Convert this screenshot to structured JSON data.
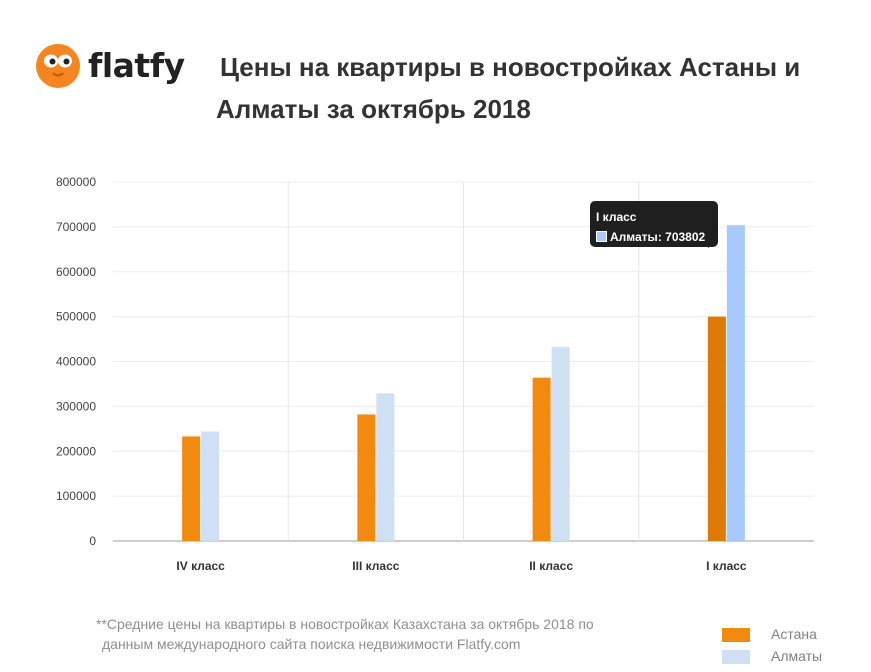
{
  "brand": {
    "name": "flatfy"
  },
  "title": {
    "line1": "Цены на квартиры в новостройках Астаны и",
    "line2": "Алматы за октябрь 2018"
  },
  "footnote": {
    "line1": "**Средние цены на квартиры в новостройках Казахстана за октябрь 2018 по",
    "line2": "данным международного сайта поиска недвижимости Flatfy.com"
  },
  "tooltip": {
    "category": "I класс",
    "series": "Алматы",
    "value": "703802"
  },
  "colors": {
    "astana": "#f28a0f",
    "almaty": "#cfdff4",
    "almaty_active": "#a8c9fb",
    "astana_active": "#de7a05"
  },
  "legend": [
    {
      "name": "Астана",
      "color": "#f28a0f"
    },
    {
      "name": "Алматы",
      "color": "#cfdff4"
    }
  ],
  "chart_data": {
    "type": "bar",
    "categories": [
      "IV класс",
      "III класс",
      "II класс",
      "I класс"
    ],
    "series": [
      {
        "name": "Астана",
        "values": [
          233000,
          282000,
          364000,
          500000
        ]
      },
      {
        "name": "Алматы",
        "values": [
          244000,
          329000,
          432000,
          703802
        ]
      }
    ],
    "highlighted": {
      "category": "I класс"
    },
    "yticks": [
      "0",
      "100000",
      "200000",
      "300000",
      "400000",
      "500000",
      "600000",
      "700000",
      "800000"
    ],
    "ylim": [
      0,
      800000
    ],
    "grid": true,
    "legend_position": "bottom-right"
  }
}
